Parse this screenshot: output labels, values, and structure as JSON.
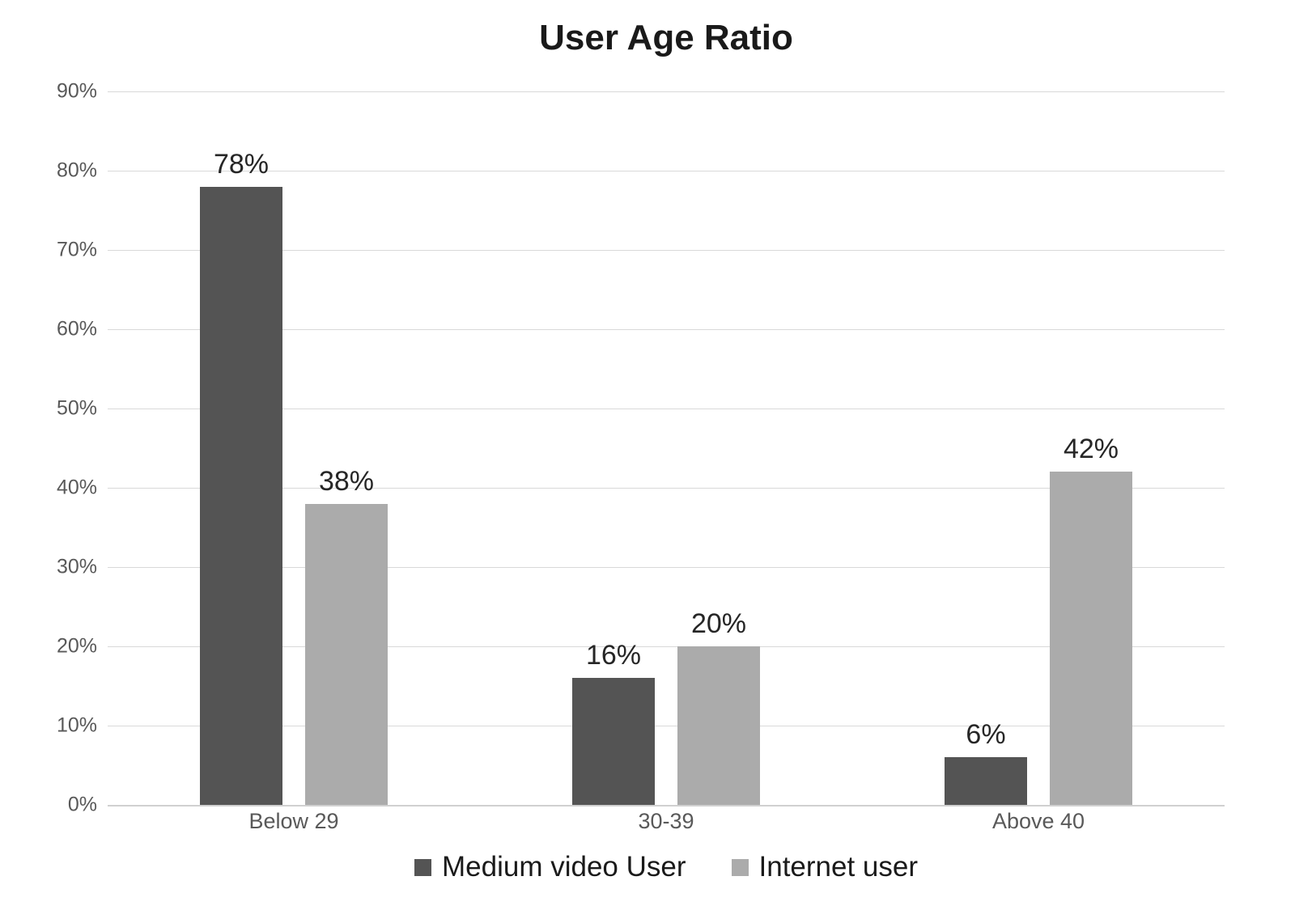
{
  "chart_data": {
    "type": "bar",
    "title": "User Age Ratio",
    "categories": [
      "Below 29",
      "30-39",
      "Above 40"
    ],
    "series": [
      {
        "name": "Medium video User",
        "color": "#545454",
        "values": [
          78,
          16,
          6
        ]
      },
      {
        "name": "Internet user",
        "color": "#ababab",
        "values": [
          38,
          20,
          42
        ]
      }
    ],
    "value_suffix": "%",
    "data_labels": {
      "medium_video_user": [
        "78%",
        "16%",
        "6%"
      ],
      "internet_user": [
        "38%",
        "20%",
        "42%"
      ]
    },
    "y_ticks": [
      "90%",
      "80%",
      "70%",
      "60%",
      "50%",
      "40%",
      "30%",
      "20%",
      "10%",
      "0%"
    ],
    "ylim": [
      0,
      90
    ],
    "xlabel": "",
    "ylabel": "",
    "grid": "horizontal",
    "legend_position": "bottom",
    "colors": {
      "gridline": "#d9d9d9",
      "axis_line": "#d0d0d0",
      "tick_text": "#595959",
      "value_label_text": "#262626",
      "title_text": "#1a1a1a"
    }
  }
}
